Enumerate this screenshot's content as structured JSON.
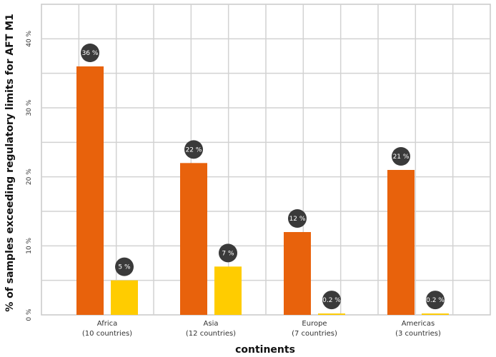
{
  "chart_data": {
    "type": "bar",
    "title": "",
    "xlabel": "continents",
    "ylabel": "% of samples exceeding regulatory limits for AFT M1",
    "ylim": [
      0,
      45
    ],
    "yticks": [
      0,
      10,
      20,
      30,
      40
    ],
    "ytick_labels": [
      "0 %",
      "10 %",
      "20 %",
      "30 %",
      "40 %"
    ],
    "grid": true,
    "legend": "none",
    "categories": [
      "Africa",
      "Asia",
      "Europe",
      "Americas"
    ],
    "category_sublabels": [
      "(10 countries)",
      "(12 countries)",
      "(7 countries)",
      "(3 countries)"
    ],
    "series": [
      {
        "color": "#E8620C",
        "values": [
          36,
          22,
          12,
          21
        ],
        "data_labels": [
          "36 %",
          "22 %",
          "12 %",
          "21 %"
        ]
      },
      {
        "color": "#FFCC00",
        "values": [
          5,
          7,
          0.2,
          0.2
        ],
        "data_labels": [
          "5 %",
          "7 %",
          "0.2 %",
          "0.2 %"
        ]
      }
    ],
    "bubble_color": "#3a3a3a"
  }
}
